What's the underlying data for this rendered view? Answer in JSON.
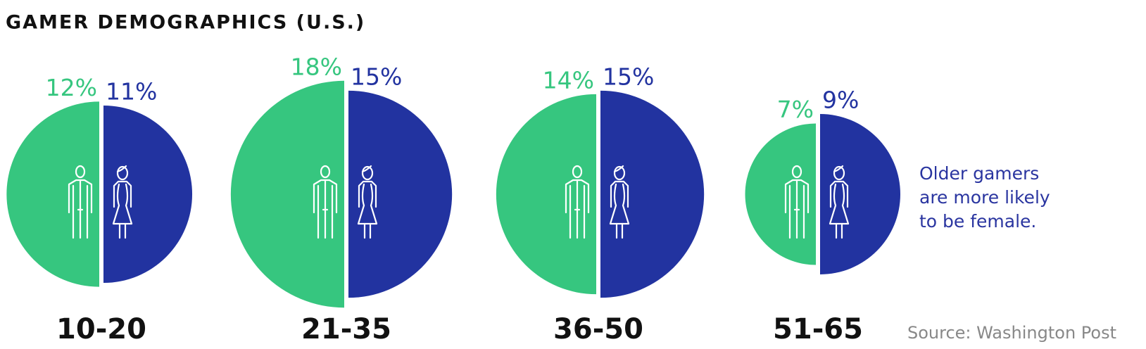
{
  "chart_data": {
    "type": "split-bubble",
    "title": "GAMER DEMOGRAPHICS (U.S.)",
    "categories": [
      "10-20",
      "21-35",
      "36-50",
      "51-65"
    ],
    "series": [
      {
        "color": "#36c67f",
        "values": [
          12,
          18,
          14,
          7
        ],
        "value_labels": [
          "12%",
          "18%",
          "14%",
          "7%"
        ]
      },
      {
        "color": "#2233a0",
        "values": [
          11,
          15,
          15,
          9
        ],
        "value_labels": [
          "11%",
          "15%",
          "15%",
          "9%"
        ]
      }
    ],
    "annotation": [
      "Older gamers",
      "are more likely",
      "to be female."
    ],
    "source": "Source: Washington Post"
  }
}
